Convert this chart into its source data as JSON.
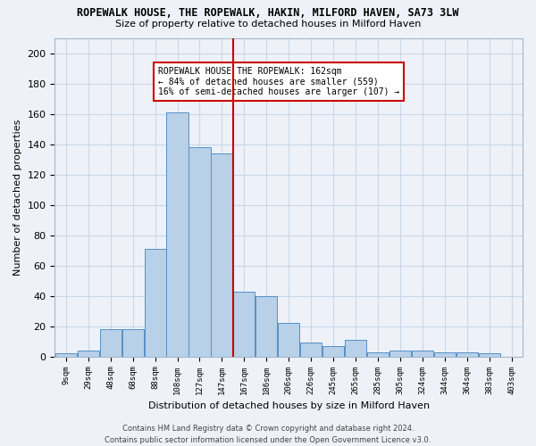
{
  "title": "ROPEWALK HOUSE, THE ROPEWALK, HAKIN, MILFORD HAVEN, SA73 3LW",
  "subtitle": "Size of property relative to detached houses in Milford Haven",
  "xlabel": "Distribution of detached houses by size in Milford Haven",
  "ylabel": "Number of detached properties",
  "footer_line1": "Contains HM Land Registry data © Crown copyright and database right 2024.",
  "footer_line2": "Contains public sector information licensed under the Open Government Licence v3.0.",
  "bar_color": "#b8d0e8",
  "bar_edge_color": "#5590c8",
  "grid_color": "#c8d8ea",
  "vline_color": "#cc0000",
  "annotation_text": "ROPEWALK HOUSE THE ROPEWALK: 162sqm\n← 84% of detached houses are smaller (559)\n16% of semi-detached houses are larger (107) →",
  "annotation_box_color": "#ffffff",
  "annotation_box_edge": "#cc0000",
  "bins": [
    "9sqm",
    "29sqm",
    "48sqm",
    "68sqm",
    "88sqm",
    "108sqm",
    "127sqm",
    "147sqm",
    "167sqm",
    "186sqm",
    "206sqm",
    "226sqm",
    "245sqm",
    "265sqm",
    "285sqm",
    "305sqm",
    "324sqm",
    "344sqm",
    "364sqm",
    "383sqm",
    "403sqm"
  ],
  "values": [
    2,
    4,
    18,
    18,
    71,
    161,
    138,
    134,
    43,
    40,
    22,
    9,
    7,
    11,
    3,
    4,
    4,
    3,
    3,
    2,
    0
  ],
  "ylim": [
    0,
    210
  ],
  "yticks": [
    0,
    20,
    40,
    60,
    80,
    100,
    120,
    140,
    160,
    180,
    200
  ],
  "background_color": "#eef2f8"
}
